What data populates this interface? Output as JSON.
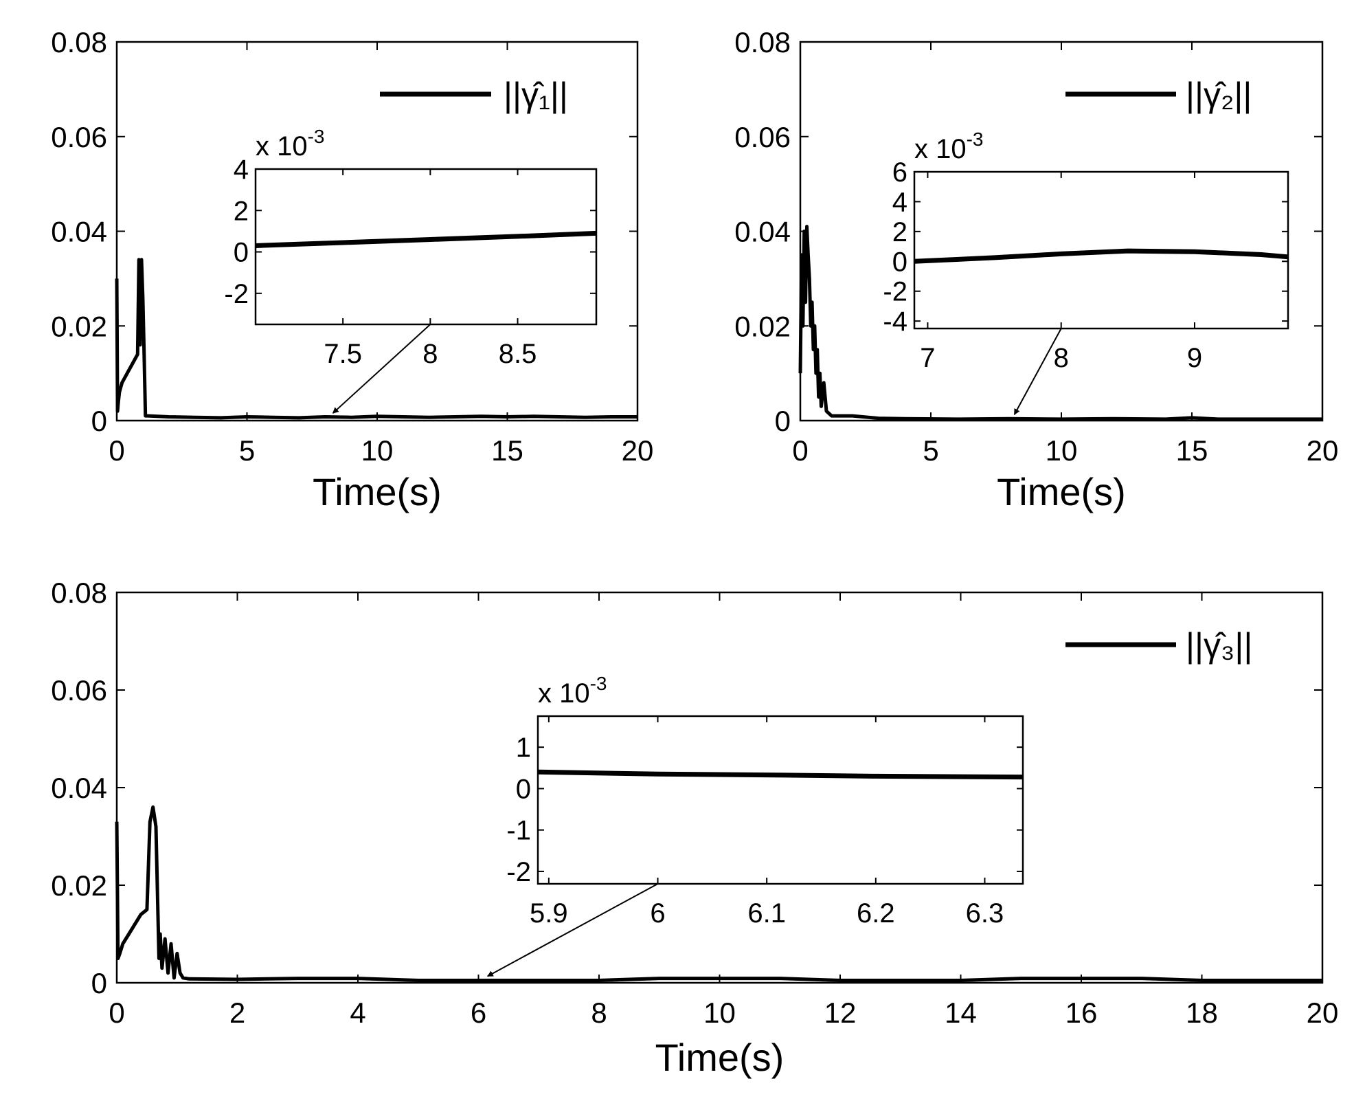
{
  "chart_data": [
    {
      "id": "top-left",
      "type": "line",
      "xlabel": "Time(s)",
      "ylabel": "",
      "xlim": [
        0,
        20
      ],
      "ylim": [
        0,
        0.08
      ],
      "x_ticks": [
        0,
        5,
        10,
        15,
        20
      ],
      "x_tick_labels": [
        "0",
        "5",
        "10",
        "15",
        "20"
      ],
      "y_ticks": [
        0,
        0.02,
        0.04,
        0.06,
        0.08
      ],
      "y_tick_labels": [
        "0",
        "0.02",
        "0.04",
        "0.06",
        "0.08"
      ],
      "legend": {
        "label": "||γ̂₁||",
        "placement": "top-right"
      },
      "series": [
        {
          "name": "||γ̂₁||",
          "x": [
            0,
            0.03,
            0.06,
            0.1,
            0.2,
            0.4,
            0.6,
            0.8,
            0.85,
            0.9,
            0.95,
            1.0,
            1.05,
            1.1,
            1.15,
            1.2,
            2,
            3,
            4,
            5,
            6,
            7,
            8,
            9,
            10,
            11,
            12,
            13,
            14,
            15,
            16,
            17,
            18,
            19,
            20
          ],
          "y": [
            0.03,
            0.002,
            0.004,
            0.006,
            0.008,
            0.01,
            0.012,
            0.014,
            0.034,
            0.016,
            0.034,
            0.026,
            0.014,
            0.001,
            0.001,
            0.001,
            0.0008,
            0.0007,
            0.0006,
            0.0008,
            0.0007,
            0.0006,
            0.0008,
            0.0007,
            0.0009,
            0.0008,
            0.0007,
            0.0008,
            0.0009,
            0.0008,
            0.0009,
            0.0008,
            0.0007,
            0.0008,
            0.0008
          ]
        }
      ],
      "annotation": {
        "arrow_target": [
          8.3,
          0.0007
        ]
      },
      "inset": {
        "xlim": [
          7.0,
          8.95
        ],
        "ylim": [
          -3.5,
          4.0
        ],
        "x_ticks": [
          7.5,
          8,
          8.5
        ],
        "x_tick_labels": [
          "7.5",
          "8",
          "8.5"
        ],
        "y_ticks": [
          -2,
          0,
          2,
          4
        ],
        "y_tick_labels": [
          "-2",
          "0",
          "2",
          "4"
        ],
        "exponent_base": "x 10",
        "exponent": "-3",
        "series": {
          "x": [
            7.0,
            7.5,
            8.0,
            8.5,
            8.95
          ],
          "y": [
            0.3,
            0.45,
            0.6,
            0.75,
            0.9
          ]
        }
      }
    },
    {
      "id": "top-right",
      "type": "line",
      "xlabel": "Time(s)",
      "ylabel": "",
      "xlim": [
        0,
        20
      ],
      "ylim": [
        0,
        0.08
      ],
      "x_ticks": [
        0,
        5,
        10,
        15,
        20
      ],
      "x_tick_labels": [
        "0",
        "5",
        "10",
        "15",
        "20"
      ],
      "y_ticks": [
        0,
        0.02,
        0.04,
        0.06,
        0.08
      ],
      "y_tick_labels": [
        "0",
        "0.02",
        "0.04",
        "0.06",
        "0.08"
      ],
      "legend": {
        "label": "||γ̂₂||",
        "placement": "top-right"
      },
      "series": [
        {
          "name": "||γ̂₂||",
          "x": [
            0,
            0.05,
            0.1,
            0.15,
            0.2,
            0.25,
            0.3,
            0.35,
            0.4,
            0.45,
            0.5,
            0.55,
            0.6,
            0.65,
            0.7,
            0.75,
            0.8,
            0.9,
            1.0,
            1.2,
            2,
            3,
            4,
            6,
            8,
            10,
            12,
            14,
            15,
            16,
            18,
            20
          ],
          "y": [
            0.01,
            0.035,
            0.02,
            0.04,
            0.025,
            0.041,
            0.035,
            0.03,
            0.02,
            0.025,
            0.015,
            0.02,
            0.01,
            0.015,
            0.005,
            0.01,
            0.003,
            0.008,
            0.002,
            0.001,
            0.001,
            0.0005,
            0.0004,
            0.0003,
            0.0004,
            0.0003,
            0.0004,
            0.0003,
            0.0006,
            0.0003,
            0.0003,
            0.0003
          ]
        }
      ],
      "annotation": {
        "arrow_target": [
          8.2,
          0.0004
        ]
      },
      "inset": {
        "xlim": [
          6.9,
          9.7
        ],
        "ylim": [
          -4.5,
          6.0
        ],
        "x_ticks": [
          7,
          8,
          9
        ],
        "x_tick_labels": [
          "7",
          "8",
          "9"
        ],
        "y_ticks": [
          -4,
          -2,
          0,
          2,
          4,
          6
        ],
        "y_tick_labels": [
          "-4",
          "-2",
          "0",
          "2",
          "4",
          "6"
        ],
        "exponent_base": "x 10",
        "exponent": "-3",
        "series": {
          "x": [
            6.9,
            7.5,
            8.0,
            8.5,
            9.0,
            9.5,
            9.7
          ],
          "y": [
            0.0,
            0.25,
            0.5,
            0.7,
            0.65,
            0.45,
            0.3
          ]
        }
      }
    },
    {
      "id": "bottom",
      "type": "line",
      "xlabel": "Time(s)",
      "ylabel": "",
      "xlim": [
        0,
        20
      ],
      "ylim": [
        0,
        0.08
      ],
      "x_ticks": [
        0,
        2,
        4,
        6,
        8,
        10,
        12,
        14,
        16,
        18,
        20
      ],
      "x_tick_labels": [
        "0",
        "2",
        "4",
        "6",
        "8",
        "10",
        "12",
        "14",
        "16",
        "18",
        "20"
      ],
      "y_ticks": [
        0,
        0.02,
        0.04,
        0.06,
        0.08
      ],
      "y_tick_labels": [
        "0",
        "0.02",
        "0.04",
        "0.06",
        "0.08"
      ],
      "legend": {
        "label": "||γ̂₃||",
        "placement": "top-right"
      },
      "series": [
        {
          "name": "||γ̂₃||",
          "x": [
            0,
            0.02,
            0.05,
            0.1,
            0.2,
            0.3,
            0.4,
            0.5,
            0.55,
            0.6,
            0.65,
            0.7,
            0.72,
            0.75,
            0.8,
            0.85,
            0.9,
            0.95,
            1.0,
            1.05,
            1.1,
            1.2,
            2,
            3,
            4,
            5,
            6,
            7,
            8,
            9,
            10,
            11,
            12,
            13,
            14,
            15,
            16,
            17,
            18,
            19,
            20
          ],
          "y": [
            0.033,
            0.005,
            0.006,
            0.008,
            0.01,
            0.012,
            0.014,
            0.015,
            0.033,
            0.036,
            0.032,
            0.005,
            0.01,
            0.003,
            0.009,
            0.002,
            0.008,
            0.001,
            0.006,
            0.002,
            0.001,
            0.0008,
            0.0007,
            0.0009,
            0.0009,
            0.0005,
            0.0005,
            0.0005,
            0.0005,
            0.0009,
            0.0009,
            0.0009,
            0.0005,
            0.0005,
            0.0005,
            0.0009,
            0.0009,
            0.0009,
            0.0005,
            0.0005,
            0.0005
          ]
        }
      ],
      "annotation": {
        "arrow_target": [
          6.15,
          0.0005
        ]
      },
      "inset": {
        "xlim": [
          5.89,
          6.335
        ],
        "ylim": [
          -2.3,
          1.75
        ],
        "x_ticks": [
          5.9,
          6,
          6.1,
          6.2,
          6.3
        ],
        "x_tick_labels": [
          "5.9",
          "6",
          "6.1",
          "6.2",
          "6.3"
        ],
        "y_ticks": [
          -2,
          -1,
          0,
          1
        ],
        "y_tick_labels": [
          "-2",
          "-1",
          "0",
          "1"
        ],
        "exponent_base": "x 10",
        "exponent": "-3",
        "series": {
          "x": [
            5.89,
            6.0,
            6.1,
            6.2,
            6.335
          ],
          "y": [
            0.4,
            0.35,
            0.33,
            0.3,
            0.28
          ]
        }
      }
    }
  ]
}
